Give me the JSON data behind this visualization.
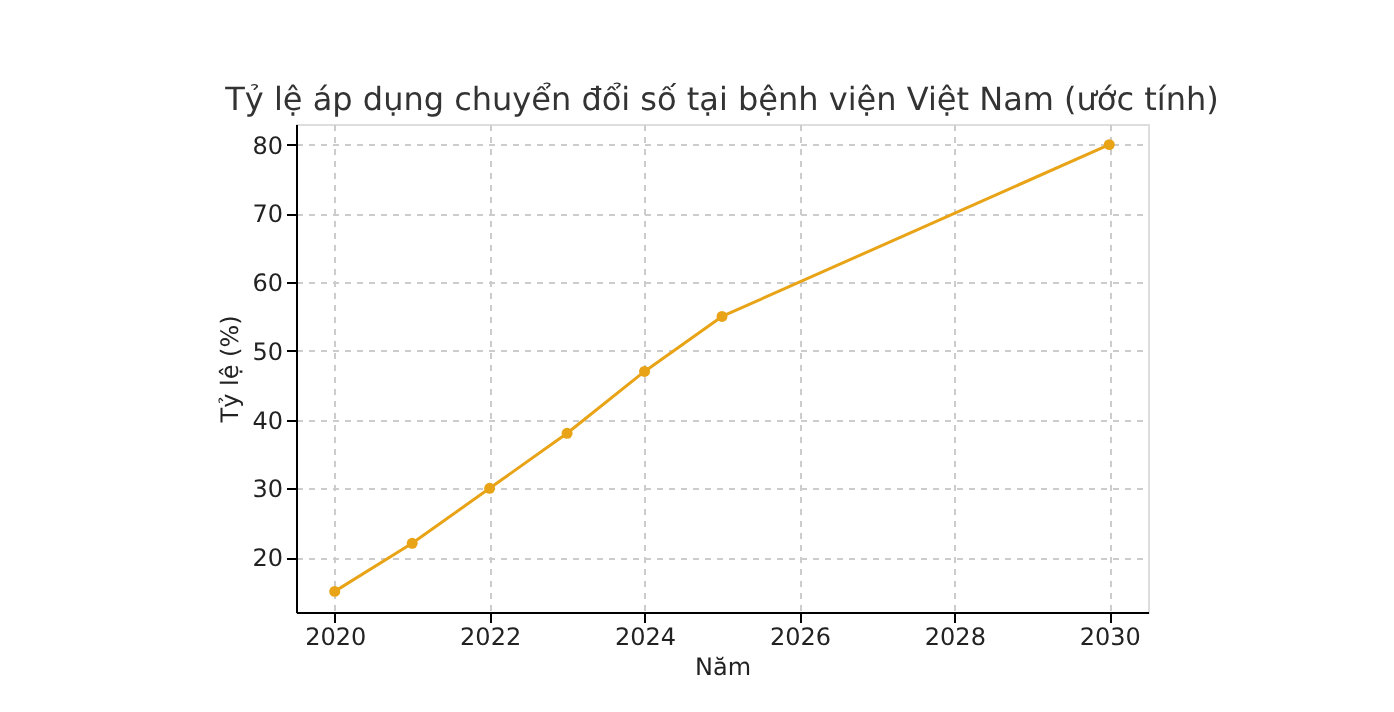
{
  "chart_data": {
    "type": "line",
    "title": "Tỷ lệ áp dụng chuyển đổi số tại bệnh viện Việt Nam (ước tính)",
    "xlabel": "Năm",
    "ylabel": "Tỷ lệ (%)",
    "x": [
      2020,
      2021,
      2022,
      2023,
      2024,
      2025,
      2030
    ],
    "series": [
      {
        "color": "#e8a317",
        "values": [
          15,
          22,
          30,
          38,
          47,
          55,
          80
        ]
      }
    ],
    "xlim": [
      2019.5,
      2030.5
    ],
    "xticks": [
      2020,
      2022,
      2024,
      2026,
      2028,
      2030
    ],
    "ylim": [
      12,
      83
    ],
    "yticks": [
      20,
      30,
      40,
      50,
      60,
      70,
      80
    ],
    "grid": true,
    "marker": "circle",
    "line_style": "solid"
  }
}
